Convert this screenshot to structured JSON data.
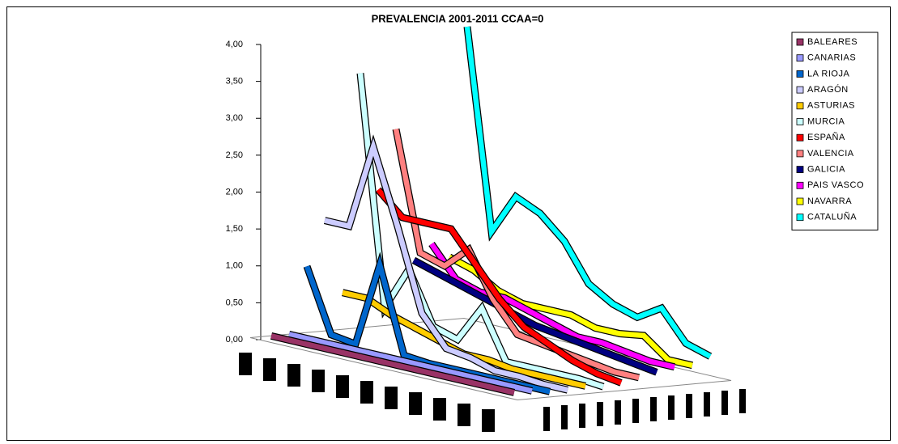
{
  "chart_data": {
    "type": "ribbon3d",
    "title": "PREVALENCIA 2001-2011 CCAA=0",
    "categories": [
      null,
      null,
      null,
      null,
      null,
      null,
      null,
      null,
      null,
      null,
      null
    ],
    "ylim": [
      0,
      4
    ],
    "yticks": [
      {
        "value": 0,
        "label": "0,00"
      },
      {
        "value": 0.5,
        "label": "0,50"
      },
      {
        "value": 1,
        "label": "1,00"
      },
      {
        "value": 1.5,
        "label": "1,50"
      },
      {
        "value": 2,
        "label": "2,00"
      },
      {
        "value": 2.5,
        "label": "2,50"
      },
      {
        "value": 3,
        "label": "3,00"
      },
      {
        "value": 3.5,
        "label": "3,50"
      },
      {
        "value": 4,
        "label": "4,00"
      }
    ],
    "legend": "right",
    "series": [
      {
        "name": "BALEARES",
        "color": "#993366",
        "values": [
          0.05,
          0.05,
          0.05,
          0.05,
          0.05,
          0.05,
          0.05,
          0.05,
          0.05,
          0.05,
          0.05
        ]
      },
      {
        "name": "CANARIAS",
        "color": "#9999ff",
        "values": [
          0.05,
          0.05,
          0.05,
          0.05,
          0.05,
          0.05,
          0.05,
          0.05,
          0.05,
          0.05,
          0.05
        ]
      },
      {
        "name": "LA RIOJA",
        "color": "#0066cc",
        "values": [
          0.95,
          0.1,
          0.05,
          1.2,
          0.05,
          0.02,
          0.02,
          0.02,
          0.02,
          0.02,
          0.02
        ]
      },
      {
        "name": "ARAGÓN",
        "color": "#ccccff",
        "values": [
          1.55,
          1.55,
          2.7,
          1.7,
          0.6,
          0.2,
          0.15,
          0.05,
          0.05,
          0.02,
          0.02
        ]
      },
      {
        "name": "ASTURIAS",
        "color": "#ffcc00",
        "values": [
          0.55,
          0.55,
          0.4,
          0.3,
          0.2,
          0.1,
          0.1,
          0.05,
          0.05,
          0.05,
          0.05
        ]
      },
      {
        "name": "MURCIA",
        "color": "#ccffff",
        "values": [
          3.5,
          0.4,
          1.0,
          0.3,
          0.2,
          0.7,
          0.05,
          0.05,
          0.05,
          0.05,
          0.02
        ]
      },
      {
        "name": "ESPAÑA",
        "color": "#ff0000",
        "values": [
          1.9,
          1.6,
          1.6,
          1.6,
          1.2,
          0.8,
          0.5,
          0.35,
          0.2,
          0.1,
          0.05
        ]
      },
      {
        "name": "VALENCIA",
        "color": "#ff8080",
        "values": [
          2.7,
          1.1,
          1.0,
          1.3,
          0.7,
          0.3,
          0.25,
          0.2,
          0.15,
          0.1,
          0.1
        ]
      },
      {
        "name": "GALICIA",
        "color": "#000080",
        "values": [
          0.9,
          0.8,
          0.7,
          0.6,
          0.5,
          0.4,
          0.35,
          0.3,
          0.25,
          0.2,
          0.15
        ]
      },
      {
        "name": "PAIS VASCO",
        "color": "#ff00ff",
        "values": [
          1.1,
          0.7,
          0.6,
          0.6,
          0.5,
          0.4,
          0.3,
          0.3,
          0.25,
          0.2,
          0.2
        ]
      },
      {
        "name": "NAVARRA",
        "color": "#ffff00",
        "values": [
          0.9,
          0.8,
          0.6,
          0.5,
          0.5,
          0.5,
          0.4,
          0.4,
          0.45,
          0.2,
          0.2
        ]
      },
      {
        "name": "CATALUÑA",
        "color": "#00ffff",
        "values": [
          4.0,
          1.3,
          1.85,
          1.7,
          1.4,
          0.9,
          0.7,
          0.6,
          0.8,
          0.4,
          0.3
        ]
      }
    ]
  }
}
